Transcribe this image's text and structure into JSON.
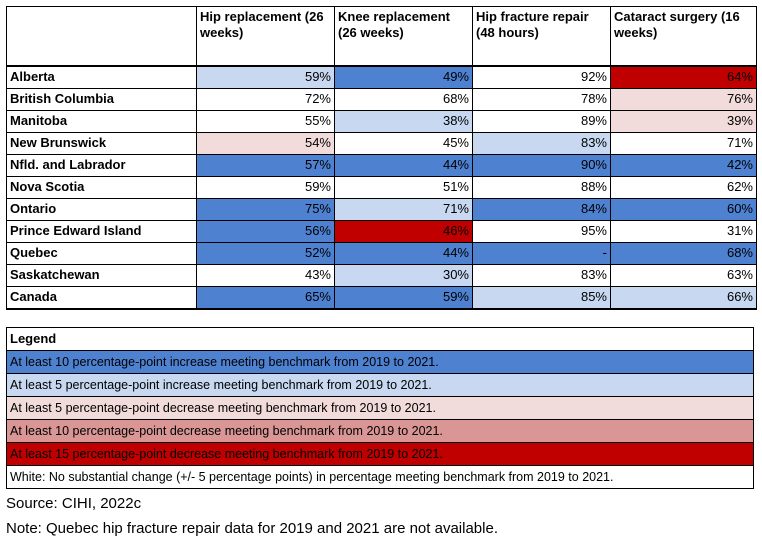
{
  "headers": [
    "",
    "Hip replacement (26 weeks)",
    "Knee replacement (26 weeks)",
    "Hip fracture repair (48 hours)",
    "Cataract surgery (16 weeks)"
  ],
  "colors": {
    "blue_dark": "#4f81d1",
    "blue_light": "#c7d8f0",
    "red_light": "#f2dcdb",
    "red_mid": "#d99694",
    "red_dark": "#c00000",
    "white": "#ffffff"
  },
  "rows": [
    {
      "province": "Alberta",
      "values": [
        "59%",
        "49%",
        "92%",
        "64%"
      ],
      "colors": [
        "#c7d8f0",
        "#4f81d1",
        "#ffffff",
        "#c00000"
      ]
    },
    {
      "province": "British Columbia",
      "values": [
        "72%",
        "68%",
        "78%",
        "76%"
      ],
      "colors": [
        "#ffffff",
        "#ffffff",
        "#ffffff",
        "#f2dcdb"
      ]
    },
    {
      "province": "Manitoba",
      "values": [
        "55%",
        "38%",
        "89%",
        "39%"
      ],
      "colors": [
        "#ffffff",
        "#c7d8f0",
        "#ffffff",
        "#f2dcdb"
      ]
    },
    {
      "province": "New Brunswick",
      "values": [
        "54%",
        "45%",
        "83%",
        "71%"
      ],
      "colors": [
        "#f2dcdb",
        "#ffffff",
        "#c7d8f0",
        "#ffffff"
      ]
    },
    {
      "province": "Nfld. and Labrador",
      "values": [
        "57%",
        "44%",
        "90%",
        "42%"
      ],
      "colors": [
        "#4f81d1",
        "#4f81d1",
        "#4f81d1",
        "#4f81d1"
      ]
    },
    {
      "province": "Nova Scotia",
      "values": [
        "59%",
        "51%",
        "88%",
        "62%"
      ],
      "colors": [
        "#ffffff",
        "#ffffff",
        "#ffffff",
        "#ffffff"
      ]
    },
    {
      "province": "Ontario",
      "values": [
        "75%",
        "71%",
        "84%",
        "60%"
      ],
      "colors": [
        "#4f81d1",
        "#c7d8f0",
        "#4f81d1",
        "#4f81d1"
      ]
    },
    {
      "province": "Prince Edward Island",
      "values": [
        "56%",
        "46%",
        "95%",
        "31%"
      ],
      "colors": [
        "#4f81d1",
        "#c00000",
        "#ffffff",
        "#ffffff"
      ]
    },
    {
      "province": "Quebec",
      "values": [
        "52%",
        "44%",
        "-",
        "68%"
      ],
      "colors": [
        "#4f81d1",
        "#4f81d1",
        "#4f81d1",
        "#4f81d1"
      ]
    },
    {
      "province": "Saskatchewan",
      "values": [
        "43%",
        "30%",
        "83%",
        "63%"
      ],
      "colors": [
        "#ffffff",
        "#c7d8f0",
        "#ffffff",
        "#ffffff"
      ]
    },
    {
      "province": "Canada",
      "values": [
        "65%",
        "59%",
        "85%",
        "66%"
      ],
      "colors": [
        "#4f81d1",
        "#4f81d1",
        "#c7d8f0",
        "#c7d8f0"
      ]
    }
  ],
  "legend": {
    "title": "Legend",
    "items": [
      {
        "text": "At least 10 percentage-point increase meeting benchmark from 2019 to 2021.",
        "color": "#4f81d1"
      },
      {
        "text": "At least 5 percentage-point increase meeting benchmark from 2019 to 2021.",
        "color": "#c7d8f0"
      },
      {
        "text": "At least 5 percentage-point decrease meeting benchmark from 2019 to 2021.",
        "color": "#f2dcdb"
      },
      {
        "text": "At least 10 percentage-point decrease meeting benchmark from 2019 to 2021.",
        "color": "#d99694"
      },
      {
        "text": "At least 15 percentage-point decrease meeting benchmark from 2019 to 2021.",
        "color": "#c00000"
      },
      {
        "text": "White: No substantial change (+/- 5 percentage points) in percentage meeting benchmark from 2019 to 2021.",
        "color": "#ffffff"
      }
    ]
  },
  "source": "Source: CIHI, 2022c",
  "note": "Note: Quebec hip fracture repair data for 2019 and 2021 are not available."
}
